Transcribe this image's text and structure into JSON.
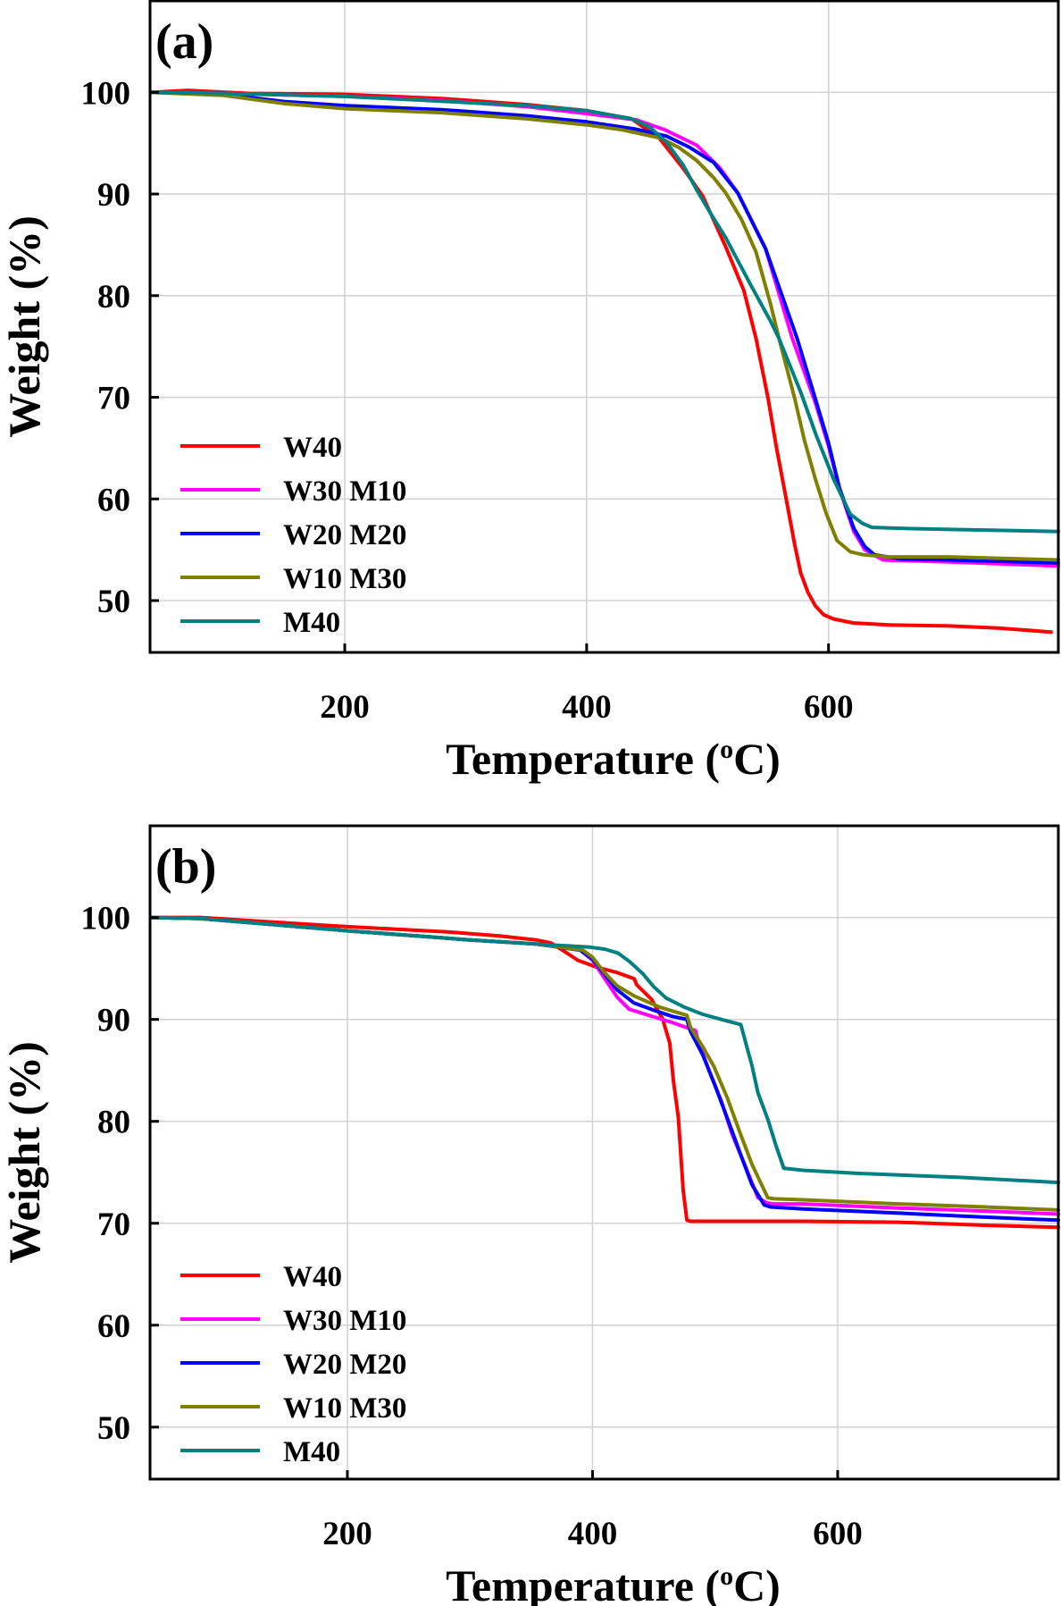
{
  "chart_data": [
    {
      "type": "line",
      "panel_label": "(a)",
      "xlabel": "Temperature (",
      "xlabel_sup": "o",
      "xlabel_suffix": "C)",
      "ylabel": "Weight (%)",
      "xlim": [
        39,
        790
      ],
      "ylim": [
        44.9,
        109
      ],
      "xticks": [
        200,
        400,
        600
      ],
      "xtick_labels": [
        "200",
        "400",
        "600"
      ],
      "yticks": [
        50,
        60,
        70,
        80,
        90,
        100
      ],
      "ytick_labels": [
        "50",
        "60",
        "70",
        "80",
        "90",
        "100"
      ],
      "grid": true,
      "legend_position": "lower-left",
      "series": [
        {
          "name": "W40",
          "color": "#FF0000",
          "x": [
            40,
            70,
            120,
            200,
            280,
            350,
            400,
            437,
            460,
            480,
            496,
            515,
            530,
            540,
            550,
            557,
            565,
            572,
            577,
            583,
            589,
            596,
            604,
            620,
            650,
            700,
            740,
            784
          ],
          "y": [
            100,
            100.2,
            99.9,
            99.8,
            99.4,
            98.8,
            98.2,
            97.4,
            95.5,
            92.5,
            89.8,
            84.8,
            80.5,
            75.8,
            69.9,
            65.0,
            60.0,
            55.5,
            52.7,
            50.8,
            49.5,
            48.6,
            48.2,
            47.8,
            47.6,
            47.5,
            47.3,
            46.9
          ]
        },
        {
          "name": "W30 M10",
          "color": "#FF00FF",
          "x": [
            40,
            100,
            200,
            280,
            350,
            400,
            441,
            465,
            491,
            510,
            525,
            548,
            570,
            589,
            600,
            609,
            621,
            630,
            645,
            700,
            790
          ],
          "y": [
            100,
            99.9,
            99.6,
            99.2,
            98.6,
            97.9,
            97.3,
            96.3,
            94.8,
            92.6,
            90.1,
            84.6,
            75.8,
            69.5,
            65.2,
            61.0,
            56.8,
            55.0,
            54.0,
            53.8,
            53.4
          ]
        },
        {
          "name": "W20 M20",
          "color": "#0000FF",
          "x": [
            40,
            100,
            150,
            200,
            280,
            350,
            400,
            440,
            466,
            485,
            505,
            525,
            548,
            574,
            589,
            600,
            609,
            621,
            630,
            638,
            660,
            700,
            790
          ],
          "y": [
            100,
            99.8,
            99.1,
            98.7,
            98.3,
            97.7,
            97.1,
            96.4,
            95.7,
            94.6,
            93.1,
            90.1,
            84.6,
            75.8,
            69.9,
            65.5,
            61.1,
            57.1,
            55.3,
            54.5,
            54.1,
            54.0,
            53.7
          ]
        },
        {
          "name": "W10 M30",
          "color": "#808000",
          "x": [
            40,
            100,
            150,
            200,
            280,
            350,
            400,
            430,
            461,
            476,
            491,
            505,
            515,
            528,
            540,
            552,
            559,
            572,
            580,
            589,
            598,
            607,
            618,
            629,
            650,
            700,
            790
          ],
          "y": [
            100,
            99.7,
            98.9,
            98.4,
            98.0,
            97.4,
            96.8,
            96.3,
            95.5,
            94.6,
            93.3,
            91.6,
            90.1,
            87.5,
            84.3,
            79.2,
            75.8,
            69.9,
            65.8,
            62.0,
            58.6,
            55.9,
            54.8,
            54.5,
            54.3,
            54.3,
            54.0
          ]
        },
        {
          "name": "M40",
          "color": "#008080",
          "x": [
            40,
            100,
            200,
            269,
            350,
            400,
            437,
            452,
            466,
            480,
            491,
            503,
            515,
            535,
            552,
            559,
            577,
            590,
            604,
            618,
            628,
            636,
            663,
            700,
            790
          ],
          "y": [
            100,
            99.9,
            99.6,
            99.2,
            98.7,
            98.2,
            97.4,
            96.6,
            95.1,
            92.8,
            90.4,
            88.0,
            85.7,
            81.2,
            77.5,
            75.8,
            70.5,
            66.2,
            62.0,
            58.5,
            57.6,
            57.2,
            57.1,
            57.0,
            56.8
          ]
        }
      ]
    },
    {
      "type": "line",
      "panel_label": "(b)",
      "xlabel": "Temperature (",
      "xlabel_sup": "o",
      "xlabel_suffix": "C)",
      "ylabel": "Weight (%)",
      "xlim": [
        39,
        780
      ],
      "ylim": [
        44.9,
        109
      ],
      "xticks": [
        200,
        400,
        600
      ],
      "xtick_labels": [
        "200",
        "400",
        "600"
      ],
      "yticks": [
        50,
        60,
        70,
        80,
        90,
        100
      ],
      "ytick_labels": [
        "50",
        "60",
        "70",
        "80",
        "90",
        "100"
      ],
      "grid": true,
      "legend_position": "lower-left",
      "series": [
        {
          "name": "W40",
          "color": "#FF0000",
          "x": [
            40,
            80,
            200,
            280,
            324,
            354,
            366,
            378,
            388,
            404,
            420,
            434,
            436,
            448,
            457,
            463,
            466,
            470,
            474,
            477,
            480,
            520,
            572,
            650,
            720,
            780
          ],
          "y": [
            100,
            100,
            99.1,
            98.6,
            98.2,
            97.8,
            97.5,
            96.6,
            95.8,
            95.1,
            94.6,
            94.0,
            93.4,
            92.0,
            90.1,
            87.7,
            84.0,
            80.4,
            73.2,
            70.3,
            70.2,
            70.2,
            70.2,
            70.1,
            69.8,
            69.6
          ]
        },
        {
          "name": "W30 M10",
          "color": "#FF00FF",
          "x": [
            40,
            80,
            200,
            300,
            354,
            390,
            400,
            410,
            420,
            430,
            446,
            465,
            484,
            486,
            495,
            505,
            514,
            525,
            535,
            542,
            548,
            572,
            650,
            720,
            780
          ],
          "y": [
            100,
            99.9,
            98.7,
            97.8,
            97.4,
            96.8,
            95.8,
            94.0,
            92.2,
            91.0,
            90.4,
            89.7,
            88.9,
            88.0,
            85.0,
            82.0,
            78.7,
            75.5,
            72.5,
            72.0,
            71.9,
            71.9,
            71.5,
            71.2,
            70.9
          ]
        },
        {
          "name": "W20 M20",
          "color": "#0000FF",
          "x": [
            40,
            80,
            200,
            300,
            354,
            390,
            400,
            410,
            420,
            434,
            450,
            465,
            477,
            480,
            490,
            500,
            510,
            520,
            530,
            540,
            545,
            560,
            572,
            650,
            720,
            780
          ],
          "y": [
            100,
            99.9,
            98.7,
            97.8,
            97.4,
            96.8,
            95.9,
            94.4,
            92.9,
            91.6,
            90.9,
            90.3,
            90.0,
            88.8,
            86.5,
            83.5,
            80.3,
            77.0,
            73.8,
            71.8,
            71.6,
            71.5,
            71.4,
            71.0,
            70.6,
            70.3
          ]
        },
        {
          "name": "W10 M30",
          "color": "#808000",
          "x": [
            40,
            80,
            200,
            300,
            354,
            392,
            400,
            409,
            420,
            434,
            455,
            477,
            480,
            490,
            499,
            510,
            519,
            530,
            543,
            548,
            572,
            650,
            720,
            780
          ],
          "y": [
            100,
            99.9,
            98.7,
            97.8,
            97.4,
            96.8,
            96.1,
            94.7,
            93.3,
            92.3,
            91.2,
            90.4,
            89.2,
            87.3,
            85.4,
            82.3,
            79.3,
            75.8,
            72.5,
            72.4,
            72.3,
            71.9,
            71.6,
            71.3
          ]
        },
        {
          "name": "M40",
          "color": "#008080",
          "x": [
            40,
            80,
            200,
            300,
            354,
            397,
            410,
            421,
            430,
            441,
            450,
            460,
            475,
            490,
            505,
            521,
            525,
            530,
            535,
            543,
            550,
            556,
            572,
            616,
            700,
            780
          ],
          "y": [
            100,
            99.9,
            98.7,
            97.8,
            97.4,
            97.1,
            96.9,
            96.5,
            95.7,
            94.5,
            93.2,
            92.1,
            91.2,
            90.5,
            90.0,
            89.5,
            87.7,
            85.5,
            82.8,
            80.2,
            77.5,
            75.4,
            75.2,
            74.9,
            74.5,
            74.0
          ]
        }
      ]
    }
  ]
}
